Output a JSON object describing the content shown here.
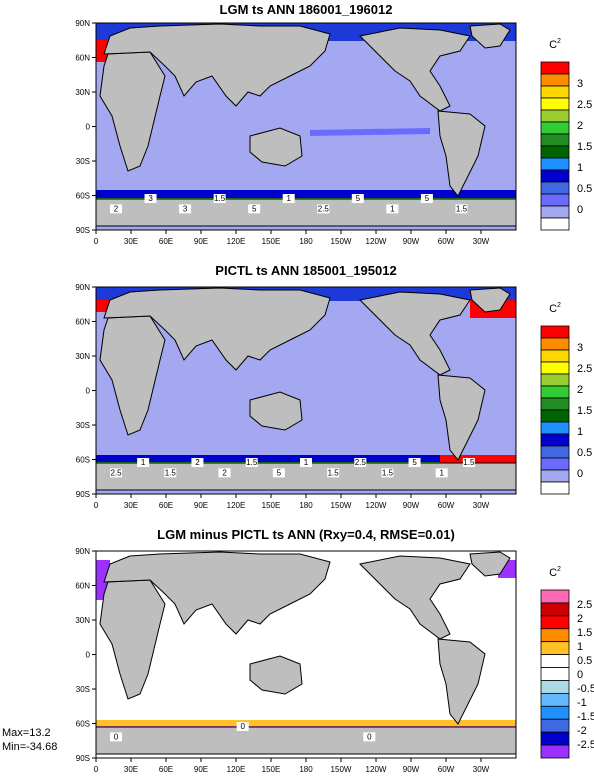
{
  "chart_data": [
    {
      "type": "heatmap",
      "title": "LGM ts ANN 186001_196012",
      "xticks": [
        "0",
        "30E",
        "60E",
        "90E",
        "120E",
        "150E",
        "180",
        "150W",
        "120W",
        "90W",
        "60W",
        "30W"
      ],
      "yticks": [
        "90N",
        "60N",
        "30N",
        "0",
        "30S",
        "60S",
        "90S"
      ],
      "colorbar_unit": "C",
      "colorbar_unit_sup": "2",
      "colorbar_labels": [
        "3",
        "2.5",
        "2",
        "1.5",
        "1",
        "0.5",
        "0"
      ],
      "contour_labels": [
        "2",
        "3",
        "3",
        "1.5",
        "5",
        "1",
        "2.5",
        "5",
        "1",
        "5",
        "1.5"
      ]
    },
    {
      "type": "heatmap",
      "title": "PICTL ts ANN 185001_195012",
      "xticks": [
        "0",
        "30E",
        "60E",
        "90E",
        "120E",
        "150E",
        "180",
        "150W",
        "120W",
        "90W",
        "60W",
        "30W"
      ],
      "yticks": [
        "90N",
        "60N",
        "30N",
        "0",
        "30S",
        "60S",
        "90S"
      ],
      "colorbar_unit": "C",
      "colorbar_unit_sup": "2",
      "colorbar_labels": [
        "3",
        "2.5",
        "2",
        "1.5",
        "1",
        "0.5",
        "0"
      ],
      "contour_labels": [
        "2.5",
        "1",
        "1.5",
        "2",
        "2",
        "1.5",
        "5",
        "1",
        "1.5",
        "2.5",
        "1.5",
        "5",
        "1",
        "1.5"
      ]
    },
    {
      "type": "heatmap",
      "title": "LGM minus PICTL ts ANN (Rxy=0.4, RMSE=0.01)",
      "xticks": [
        "0",
        "30E",
        "60E",
        "90E",
        "120E",
        "150E",
        "180",
        "150W",
        "120W",
        "90W",
        "60W",
        "30W"
      ],
      "yticks": [
        "90N",
        "60N",
        "30N",
        "0",
        "30S",
        "60S",
        "90S"
      ],
      "colorbar_unit": "C",
      "colorbar_unit_sup": "2",
      "colorbar_labels": [
        "2.5",
        "2",
        "1.5",
        "1",
        "0.5",
        "0",
        "-0.5",
        "-1",
        "-1.5",
        "-2",
        "-2.5"
      ],
      "contour_labels": [
        "0",
        "0",
        "0"
      ],
      "max_label": "Max=13.2",
      "min_label": "Min=-34.68"
    }
  ],
  "colors": {
    "land": "#bebebe",
    "ocean_low": "#a3a8f0",
    "panel1_scale": [
      "#ff0000",
      "#ff8c00",
      "#ffd700",
      "#ffff00",
      "#9acd32",
      "#32cd32",
      "#228b22",
      "#006400",
      "#1e90ff",
      "#0000cd",
      "#4169e1",
      "#6a6aff",
      "#a3a8f0",
      "#ffffff"
    ],
    "panel3_scale": [
      "#ff69b4",
      "#cc0000",
      "#ff0000",
      "#ff8c00",
      "#ffc125",
      "#ffffff",
      "#ffffff",
      "#add8e6",
      "#63b8ff",
      "#1e90ff",
      "#4169e1",
      "#0000cd",
      "#9b30ff"
    ]
  }
}
